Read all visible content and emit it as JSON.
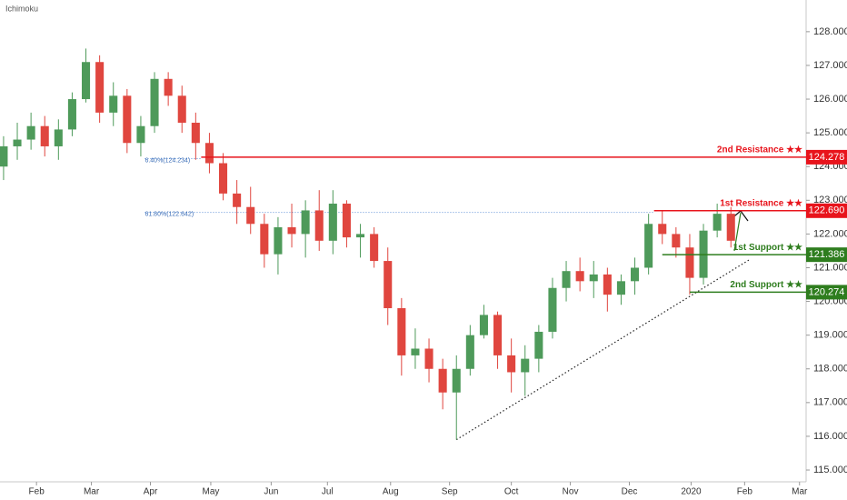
{
  "chart_data": {
    "type": "candlestick",
    "title": "Ichimoku",
    "open": [
      124.0,
      124.6,
      124.8,
      125.2,
      124.6,
      125.1,
      126.0,
      127.1,
      125.6,
      126.1,
      124.7,
      125.2,
      126.6,
      126.1,
      125.3,
      124.7,
      124.1,
      123.2,
      122.8,
      122.3,
      121.4,
      122.2,
      122.0,
      122.7,
      121.8,
      122.9,
      121.9,
      122.0,
      121.2,
      119.8,
      118.4,
      118.6,
      118.0,
      117.3,
      118.0,
      119.0,
      119.6,
      118.4,
      117.9,
      118.3,
      119.1,
      120.4,
      120.9,
      120.6,
      120.8,
      120.2,
      120.6,
      121.0,
      122.3,
      122.0,
      121.6,
      120.7,
      122.1,
      122.6
    ],
    "high": [
      124.9,
      125.3,
      125.6,
      125.5,
      125.4,
      126.2,
      127.5,
      127.3,
      126.5,
      126.3,
      125.5,
      126.8,
      126.8,
      126.4,
      125.6,
      125.0,
      124.4,
      123.6,
      123.4,
      122.6,
      122.5,
      122.9,
      123.0,
      123.3,
      123.3,
      123.0,
      122.3,
      122.2,
      121.6,
      120.1,
      119.2,
      118.9,
      118.3,
      118.4,
      119.3,
      119.9,
      119.7,
      118.9,
      118.7,
      119.3,
      120.7,
      121.2,
      121.3,
      121.2,
      121.0,
      120.8,
      121.3,
      122.6,
      122.7,
      122.2,
      122.0,
      122.3,
      122.9,
      122.8
    ],
    "low": [
      123.6,
      124.2,
      124.5,
      124.3,
      124.2,
      124.9,
      125.9,
      125.3,
      125.2,
      124.4,
      124.3,
      125.0,
      125.8,
      125.0,
      124.2,
      123.8,
      123.0,
      122.3,
      122.0,
      121.0,
      120.8,
      121.6,
      121.3,
      121.5,
      121.4,
      121.6,
      121.3,
      121.0,
      119.3,
      117.8,
      118.0,
      117.6,
      116.8,
      115.9,
      117.8,
      118.9,
      118.0,
      117.3,
      117.2,
      117.9,
      118.9,
      120.0,
      120.3,
      120.1,
      119.7,
      119.9,
      120.2,
      120.8,
      121.7,
      121.3,
      120.2,
      120.5,
      121.9,
      121.6
    ],
    "close": [
      124.6,
      124.8,
      125.2,
      124.6,
      125.1,
      126.0,
      127.1,
      125.6,
      126.1,
      124.7,
      125.2,
      126.6,
      126.1,
      125.3,
      124.7,
      124.1,
      123.2,
      122.8,
      122.3,
      121.4,
      122.2,
      122.0,
      122.7,
      121.8,
      122.9,
      121.9,
      122.0,
      121.2,
      119.8,
      118.4,
      118.6,
      118.0,
      117.3,
      118.0,
      119.0,
      119.6,
      118.4,
      117.9,
      118.3,
      119.1,
      120.4,
      120.9,
      120.6,
      120.8,
      120.2,
      120.6,
      121.0,
      122.3,
      122.0,
      121.6,
      120.7,
      122.1,
      122.6,
      121.8
    ],
    "up_color": "#4e9a5a",
    "down_color": "#e0463f",
    "xlim": [
      -0.26,
      58.48
    ],
    "xticks": [
      {
        "value": 2.4,
        "label": "Feb"
      },
      {
        "value": 6.4,
        "label": "Mar"
      },
      {
        "value": 10.7,
        "label": "Apr"
      },
      {
        "value": 15.1,
        "label": "May"
      },
      {
        "value": 19.5,
        "label": "Jun"
      },
      {
        "value": 23.6,
        "label": "Jul"
      },
      {
        "value": 28.2,
        "label": "Aug"
      },
      {
        "value": 32.5,
        "label": "Sep"
      },
      {
        "value": 37.0,
        "label": "Oct"
      },
      {
        "value": 41.3,
        "label": "Nov"
      },
      {
        "value": 45.6,
        "label": "Dec"
      },
      {
        "value": 50.1,
        "label": "2020"
      },
      {
        "value": 54.0,
        "label": "Feb"
      },
      {
        "value": 58.0,
        "label": "Mar"
      }
    ],
    "ylim": [
      114.65,
      128.94
    ],
    "yticks": [
      {
        "value": 115,
        "label": "115.000"
      },
      {
        "value": 116,
        "label": "116.000"
      },
      {
        "value": 117,
        "label": "117.000"
      },
      {
        "value": 118,
        "label": "118.000"
      },
      {
        "value": 119,
        "label": "119.000"
      },
      {
        "value": 120,
        "label": "120.000"
      },
      {
        "value": 121,
        "label": "121.000"
      },
      {
        "value": 122,
        "label": "122.000"
      },
      {
        "value": 123,
        "label": "123.000"
      },
      {
        "value": 124,
        "label": "124.000"
      },
      {
        "value": 125,
        "label": "125.000"
      },
      {
        "value": 126,
        "label": "126.000"
      },
      {
        "value": 127,
        "label": "127.000"
      },
      {
        "value": 128,
        "label": "128.000"
      }
    ],
    "levels": [
      {
        "name": "2nd Resistance ★★",
        "value": 124.278,
        "value_label": "124.278",
        "color": "#e8141c",
        "start": 14.4
      },
      {
        "name": "1st Resistance ★★",
        "value": 122.69,
        "value_label": "122.690",
        "color": "#e8141c",
        "start": 47.4
      },
      {
        "name": "1st Support ★★",
        "value": 121.386,
        "value_label": "121.386",
        "color": "#2e7d1e",
        "start": 48.0
      },
      {
        "name": "2nd Support ★★",
        "value": 120.274,
        "value_label": "120.274",
        "color": "#2e7d1e",
        "start": 50.0
      }
    ],
    "fib_levels": [
      {
        "label": "6.40%(124.234)",
        "value": 124.234,
        "start": 10.3,
        "end": 14.4
      },
      {
        "label": "61.80%(122.642)",
        "value": 122.642,
        "start": 10.3,
        "end": 47.4
      }
    ],
    "trendline": {
      "x": [
        33,
        54.4
      ],
      "y": [
        115.9,
        121.25
      ]
    }
  }
}
